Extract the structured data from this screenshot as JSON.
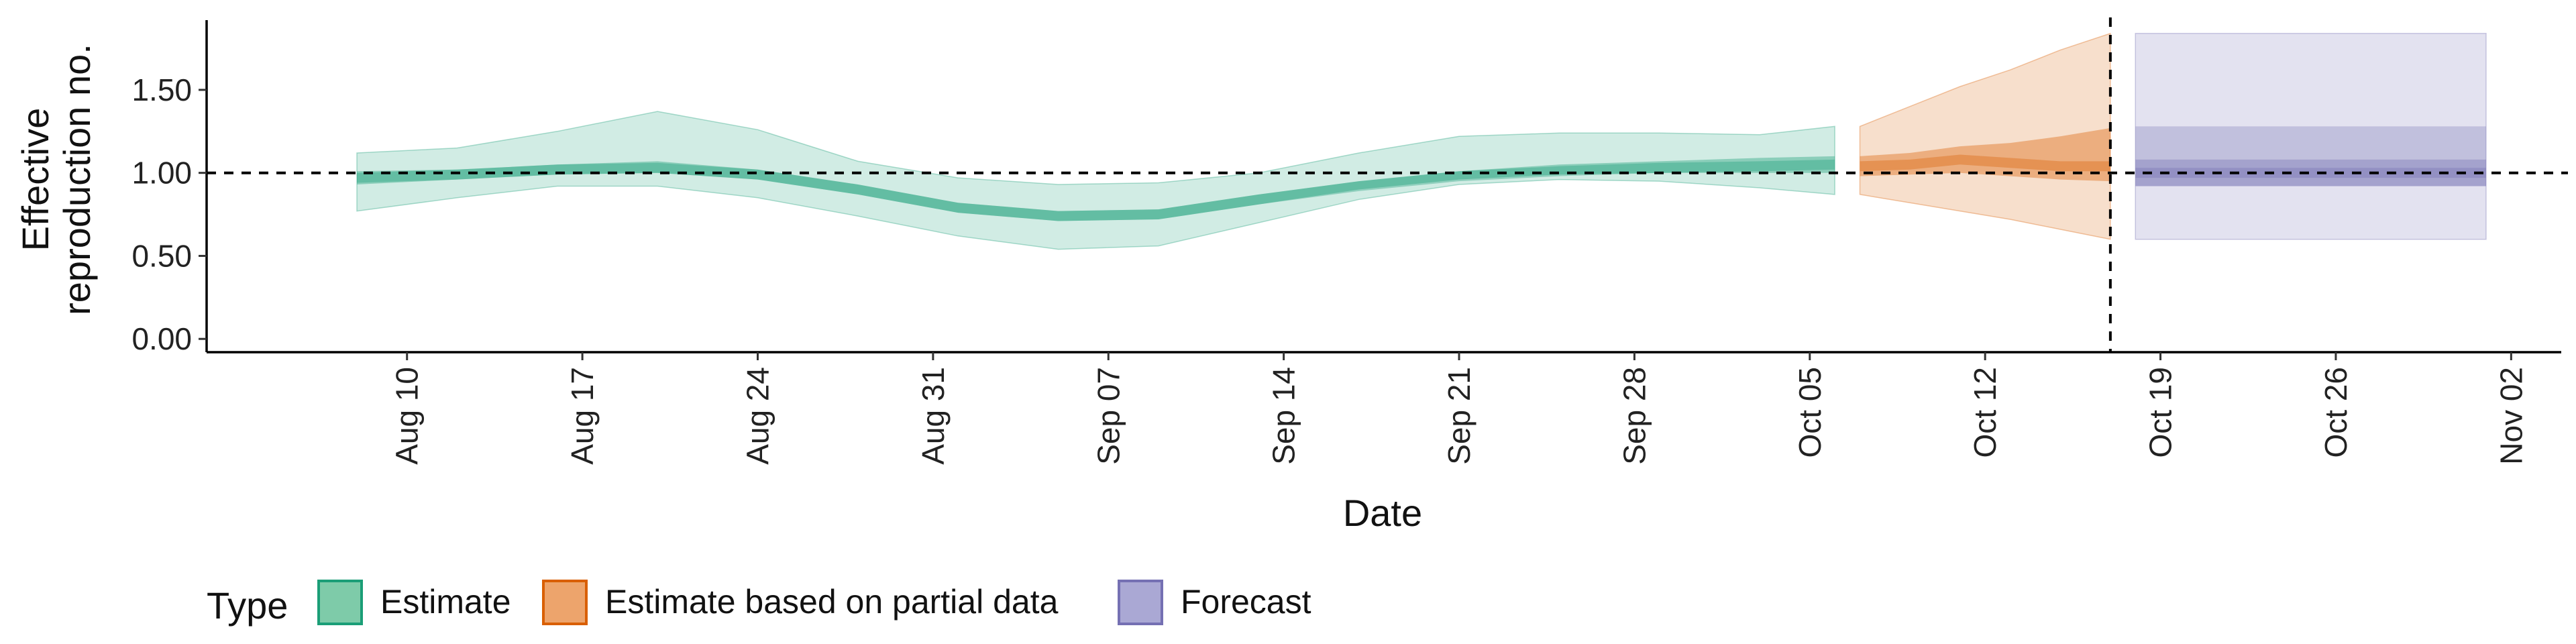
{
  "chart_data": {
    "type": "area",
    "xlabel": "Date",
    "ylabel_lines": [
      "Effective",
      "reproduction no."
    ],
    "x_ticks": [
      "Aug 10",
      "Aug 17",
      "Aug 24",
      "Aug 31",
      "Sep 07",
      "Sep 14",
      "Sep 21",
      "Sep 28",
      "Oct 05",
      "Oct 12",
      "Oct 19",
      "Oct 26",
      "Nov 02"
    ],
    "x_tick_dates": [
      "2020-08-10",
      "2020-08-17",
      "2020-08-24",
      "2020-08-31",
      "2020-09-07",
      "2020-09-14",
      "2020-09-21",
      "2020-09-28",
      "2020-10-05",
      "2020-10-12",
      "2020-10-19",
      "2020-10-26",
      "2020-11-02"
    ],
    "xlim": [
      "2020-08-02",
      "2020-11-04"
    ],
    "y_ticks": [
      "0.00",
      "0.50",
      "1.00",
      "1.50"
    ],
    "ylim": [
      -0.08,
      1.92
    ],
    "reference_hline": 1.0,
    "reference_vline": "2020-10-17",
    "legend": {
      "title": "Type",
      "position": "bottom",
      "entries": [
        {
          "label": "Estimate",
          "fill": "#7ecba9",
          "stroke": "#1b9e77"
        },
        {
          "label": "Estimate based on partial data",
          "fill": "#eda46c",
          "stroke": "#d95f02"
        },
        {
          "label": "Forecast",
          "fill": "#aaa8d4",
          "stroke": "#7570b3"
        }
      ]
    },
    "series": [
      {
        "type_label": "Estimate",
        "color": "#1b9e77",
        "dates": [
          "2020-08-08",
          "2020-08-12",
          "2020-08-16",
          "2020-08-20",
          "2020-08-24",
          "2020-08-28",
          "2020-09-01",
          "2020-09-05",
          "2020-09-09",
          "2020-09-13",
          "2020-09-17",
          "2020-09-21",
          "2020-09-25",
          "2020-09-29",
          "2020-10-03",
          "2020-10-06"
        ],
        "median": [
          0.97,
          0.99,
          1.02,
          1.03,
          0.99,
          0.9,
          0.79,
          0.74,
          0.75,
          0.84,
          0.92,
          0.98,
          1.01,
          1.03,
          1.04,
          1.05
        ],
        "ci50_lower": [
          0.93,
          0.96,
          0.99,
          1.0,
          0.96,
          0.87,
          0.76,
          0.71,
          0.72,
          0.81,
          0.9,
          0.96,
          0.99,
          1.0,
          1.0,
          1.0
        ],
        "ci50_upper": [
          1.01,
          1.02,
          1.05,
          1.07,
          1.02,
          0.93,
          0.82,
          0.77,
          0.78,
          0.87,
          0.95,
          1.01,
          1.05,
          1.07,
          1.09,
          1.1
        ],
        "ci90_lower": [
          0.77,
          0.85,
          0.92,
          0.92,
          0.85,
          0.74,
          0.62,
          0.54,
          0.56,
          0.7,
          0.84,
          0.93,
          0.96,
          0.95,
          0.91,
          0.87
        ],
        "ci90_upper": [
          1.12,
          1.15,
          1.25,
          1.37,
          1.26,
          1.07,
          0.97,
          0.93,
          0.94,
          1.0,
          1.12,
          1.22,
          1.24,
          1.24,
          1.23,
          1.28
        ]
      },
      {
        "type_label": "Estimate based on partial data",
        "color": "#d95f02",
        "dates": [
          "2020-10-07",
          "2020-10-09",
          "2020-10-11",
          "2020-10-13",
          "2020-10-15",
          "2020-10-17"
        ],
        "median": [
          1.04,
          1.05,
          1.08,
          1.06,
          1.04,
          1.04
        ],
        "ci50_lower": [
          0.98,
          0.99,
          1.0,
          0.98,
          0.96,
          0.95
        ],
        "ci50_upper": [
          1.1,
          1.12,
          1.16,
          1.18,
          1.22,
          1.27
        ],
        "ci90_lower": [
          0.87,
          0.82,
          0.77,
          0.72,
          0.66,
          0.6
        ],
        "ci90_upper": [
          1.28,
          1.4,
          1.52,
          1.62,
          1.74,
          1.84
        ]
      },
      {
        "type_label": "Forecast",
        "color": "#7570b3",
        "dates": [
          "2020-10-18",
          "2020-11-01"
        ],
        "median": [
          1.0,
          1.0
        ],
        "ci50_lower": [
          0.92,
          0.92
        ],
        "ci50_upper": [
          1.08,
          1.08
        ],
        "ci90_lower": [
          0.6,
          0.6
        ],
        "ci90_upper": [
          1.84,
          1.84
        ],
        "ci_outer2_lower": [
          0.92,
          0.92
        ],
        "ci_outer2_upper": [
          1.28,
          1.28
        ]
      }
    ]
  }
}
